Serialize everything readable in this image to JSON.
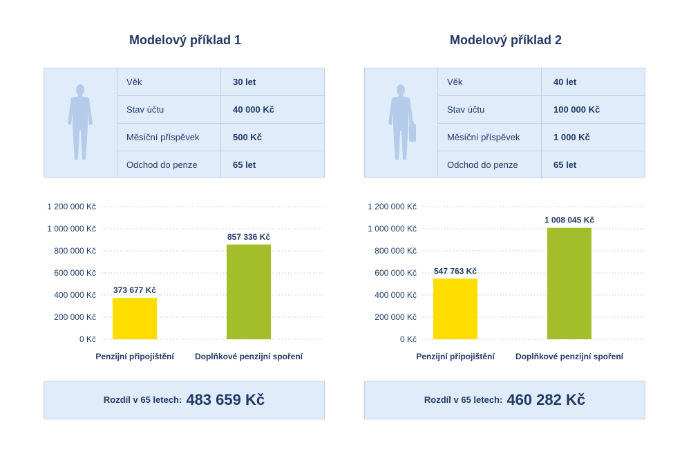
{
  "colors": {
    "text": "#1f3a66",
    "box_bg": "#e1ecfb",
    "box_border": "#b9cfee",
    "grid": "#b7bfcc",
    "bar_pp": "#ffdd00",
    "bar_dps": "#a3be2a",
    "silhouette": "#b4cbe9"
  },
  "panels": [
    {
      "title": "Modelový příklad 1",
      "avatar": "man-standing-icon",
      "rows": [
        {
          "label": "Věk",
          "value": "30 let"
        },
        {
          "label": "Stav účtu",
          "value": "40 000 Kč"
        },
        {
          "label": "Měsíční příspěvek",
          "value": "500 Kč"
        },
        {
          "label": "Odchod do penze",
          "value": "65 let"
        }
      ],
      "difference": {
        "label": "Rozdíl v 65 letech:",
        "value": "483 659 Kč"
      }
    },
    {
      "title": "Modelový příklad 2",
      "avatar": "man-with-briefcase-icon",
      "rows": [
        {
          "label": "Věk",
          "value": "40 let"
        },
        {
          "label": "Stav účtu",
          "value": "100 000 Kč"
        },
        {
          "label": "Měsíční příspěvek",
          "value": "1 000 Kč"
        },
        {
          "label": "Odchod do penze",
          "value": "65 let"
        }
      ],
      "difference": {
        "label": "Rozdíl v 65 letech:",
        "value": "460 282 Kč"
      }
    }
  ],
  "chart_data": [
    {
      "type": "bar",
      "categories": [
        "Penzijní připojištění",
        "Doplňkové penzijní spoření"
      ],
      "values": [
        373677,
        857336
      ],
      "data_labels": [
        "373 677 Kč",
        "857 336 Kč"
      ],
      "ylim": [
        0,
        1200000
      ],
      "yticks": [
        0,
        200000,
        400000,
        600000,
        800000,
        1000000,
        1200000
      ],
      "ytick_labels": [
        "0 Kč",
        "200 000 Kč",
        "400 000 Kč",
        "600 000 Kč",
        "800 000 Kč",
        "1 000 000 Kč",
        "1 200 000 Kč"
      ],
      "grid": true
    },
    {
      "type": "bar",
      "categories": [
        "Penzijní připojištění",
        "Doplňkové penzijní spoření"
      ],
      "values": [
        547763,
        1008045
      ],
      "data_labels": [
        "547 763 Kč",
        "1 008 045 Kč"
      ],
      "ylim": [
        0,
        1200000
      ],
      "yticks": [
        0,
        200000,
        400000,
        600000,
        800000,
        1000000,
        1200000
      ],
      "ytick_labels": [
        "0 Kč",
        "200 000 Kč",
        "400 000 Kč",
        "600 000 Kč",
        "800 000 Kč",
        "1 000 000 Kč",
        "1 200 000 Kč"
      ],
      "grid": true
    }
  ]
}
